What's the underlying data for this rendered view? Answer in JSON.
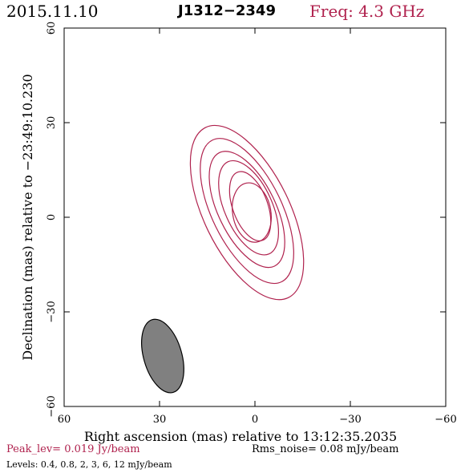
{
  "header": {
    "date": "2015.11.10",
    "source": "J1312−2349",
    "freq": "Freq: 4.3 GHz"
  },
  "colors": {
    "contour": "#b0224e",
    "beam_fill": "#808080",
    "axes": "#000000"
  },
  "chart_data": {
    "type": "contour",
    "xlabel": "Right ascension (mas) relative to 13:12:35.2035",
    "ylabel": "Declination (mas) relative to −23:49:10.230",
    "xlim": [
      60,
      -60
    ],
    "ylim": [
      -60,
      60
    ],
    "xticks": [
      60,
      30,
      0,
      -30,
      -60
    ],
    "yticks": [
      -60,
      -30,
      0,
      30,
      60
    ],
    "xtick_labels": [
      "60",
      "30",
      "0",
      "−30",
      "−60"
    ],
    "ytick_labels": [
      "−60",
      "−30",
      "0",
      "30",
      "60"
    ],
    "contour_levels": [
      0.4,
      0.8,
      2,
      3,
      6,
      12
    ],
    "contour_units": "mJy/beam",
    "contours": [
      {
        "level": 0.4,
        "center": [
          2.5,
          1.5
        ],
        "semi_major_mas": 30,
        "semi_minor_mas": 13.5,
        "pa_deg": -26
      },
      {
        "level": 0.8,
        "center": [
          2.5,
          2.0
        ],
        "semi_major_mas": 25,
        "semi_minor_mas": 11,
        "pa_deg": -26
      },
      {
        "level": 2,
        "center": [
          2.5,
          2.5
        ],
        "semi_major_mas": 20,
        "semi_minor_mas": 9,
        "pa_deg": -26
      },
      {
        "level": 3,
        "center": [
          2.0,
          3.0
        ],
        "semi_major_mas": 16,
        "semi_minor_mas": 7.5,
        "pa_deg": -24
      },
      {
        "level": 6,
        "center": [
          1.5,
          3.5
        ],
        "semi_major_mas": 11.5,
        "semi_minor_mas": 5.5,
        "pa_deg": -20
      },
      {
        "level": 12,
        "center": [
          1.0,
          1.5
        ],
        "semi_major_mas": 9.5,
        "semi_minor_mas": 6,
        "pa_deg": -10
      }
    ],
    "beam": {
      "center": [
        29,
        -44
      ],
      "semi_major_mas": 12,
      "semi_minor_mas": 6,
      "pa_deg": -16
    },
    "peak_text": "Peak_lev=  0.019 Jy/beam",
    "rms_text": "Rms_noise= 0.08 mJy/beam",
    "levels_text": "Levels: 0.4, 0.8,   2,   3,   6,  12 mJy/beam"
  }
}
